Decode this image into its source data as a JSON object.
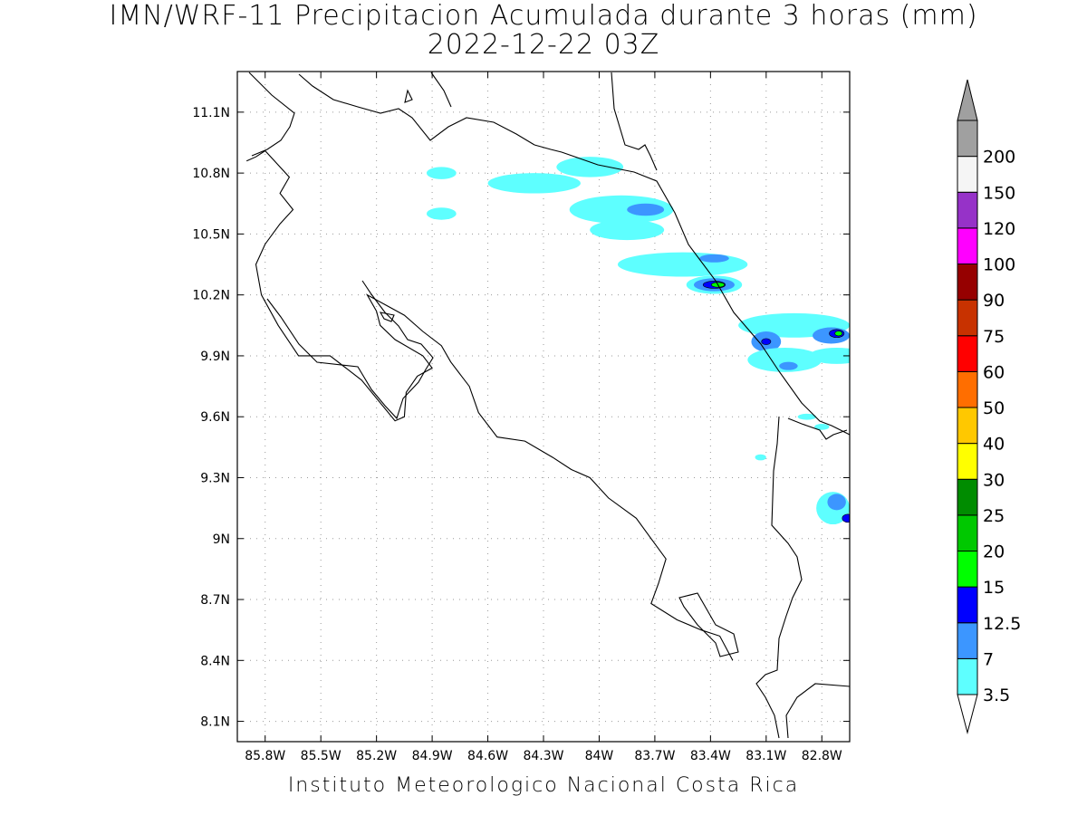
{
  "title": {
    "line1": "IMN/WRF-11 Precipitacion Acumulada durante 3 horas (mm)",
    "line2": "2022-12-22 03Z"
  },
  "footer": "Instituto Meteorologico Nacional Costa Rica",
  "map": {
    "lon_range": [
      -85.95,
      -82.65
    ],
    "lat_range": [
      8.0,
      11.3
    ],
    "lat_ticks": [
      {
        "value": 11.1,
        "label": "11.1N"
      },
      {
        "value": 10.8,
        "label": "10.8N"
      },
      {
        "value": 10.5,
        "label": "10.5N"
      },
      {
        "value": 10.2,
        "label": "10.2N"
      },
      {
        "value": 9.9,
        "label": "9.9N"
      },
      {
        "value": 9.6,
        "label": "9.6N"
      },
      {
        "value": 9.3,
        "label": "9.3N"
      },
      {
        "value": 9.0,
        "label": "9N"
      },
      {
        "value": 8.7,
        "label": "8.7N"
      },
      {
        "value": 8.4,
        "label": "8.4N"
      },
      {
        "value": 8.1,
        "label": "8.1N"
      }
    ],
    "lon_ticks": [
      {
        "value": -85.8,
        "label": "85.8W"
      },
      {
        "value": -85.5,
        "label": "85.5W"
      },
      {
        "value": -85.2,
        "label": "85.2W"
      },
      {
        "value": -84.9,
        "label": "84.9W"
      },
      {
        "value": -84.6,
        "label": "84.6W"
      },
      {
        "value": -84.3,
        "label": "84.3W"
      },
      {
        "value": -84.0,
        "label": "84W"
      },
      {
        "value": -83.7,
        "label": "83.7W"
      },
      {
        "value": -83.4,
        "label": "83.4W"
      },
      {
        "value": -83.1,
        "label": "83.1W"
      },
      {
        "value": -82.8,
        "label": "82.8W"
      }
    ],
    "grid": "dotted"
  },
  "legend": {
    "title": "",
    "levels": [
      {
        "label": "3.5",
        "color": "#5effff"
      },
      {
        "label": "7",
        "color": "#3c96ff"
      },
      {
        "label": "12.5",
        "color": "#0000ff"
      },
      {
        "label": "15",
        "color": "#00ff00"
      },
      {
        "label": "20",
        "color": "#00c800"
      },
      {
        "label": "25",
        "color": "#008c00"
      },
      {
        "label": "30",
        "color": "#ffff00"
      },
      {
        "label": "40",
        "color": "#ffc800"
      },
      {
        "label": "50",
        "color": "#ff6e00"
      },
      {
        "label": "60",
        "color": "#ff0000"
      },
      {
        "label": "75",
        "color": "#c83200"
      },
      {
        "label": "90",
        "color": "#960000"
      },
      {
        "label": "100",
        "color": "#ff00ff"
      },
      {
        "label": "120",
        "color": "#9632c8"
      },
      {
        "label": "150",
        "color": "#f5f5f5"
      },
      {
        "label": "200",
        "color": "#a0a0a0"
      }
    ],
    "under_color": "#ffffff",
    "over_color": "#a0a0a0"
  },
  "precip_cells": [
    {
      "lon": -84.05,
      "lat": 10.83,
      "rx": 0.18,
      "ry": 0.05,
      "level": 0
    },
    {
      "lon": -84.85,
      "lat": 10.8,
      "rx": 0.08,
      "ry": 0.03,
      "level": 0
    },
    {
      "lon": -84.85,
      "lat": 10.6,
      "rx": 0.08,
      "ry": 0.03,
      "level": 0
    },
    {
      "lon": -84.35,
      "lat": 10.75,
      "rx": 0.25,
      "ry": 0.05,
      "level": 0
    },
    {
      "lon": -83.88,
      "lat": 10.62,
      "rx": 0.28,
      "ry": 0.07,
      "level": 0
    },
    {
      "lon": -83.75,
      "lat": 10.62,
      "rx": 0.1,
      "ry": 0.03,
      "level": 1
    },
    {
      "lon": -83.85,
      "lat": 10.52,
      "rx": 0.2,
      "ry": 0.05,
      "level": 0
    },
    {
      "lon": -83.55,
      "lat": 10.35,
      "rx": 0.35,
      "ry": 0.06,
      "level": 0
    },
    {
      "lon": -83.38,
      "lat": 10.38,
      "rx": 0.08,
      "ry": 0.02,
      "level": 1
    },
    {
      "lon": -83.38,
      "lat": 10.25,
      "rx": 0.15,
      "ry": 0.045,
      "level": 0
    },
    {
      "lon": -83.38,
      "lat": 10.25,
      "rx": 0.11,
      "ry": 0.032,
      "level": 1
    },
    {
      "lon": -83.38,
      "lat": 10.25,
      "rx": 0.06,
      "ry": 0.018,
      "level": 2
    },
    {
      "lon": -83.36,
      "lat": 10.25,
      "rx": 0.035,
      "ry": 0.012,
      "level": 3
    },
    {
      "lon": -82.95,
      "lat": 10.05,
      "rx": 0.3,
      "ry": 0.06,
      "level": 0
    },
    {
      "lon": -83.1,
      "lat": 9.97,
      "rx": 0.08,
      "ry": 0.05,
      "level": 1
    },
    {
      "lon": -83.1,
      "lat": 9.97,
      "rx": 0.025,
      "ry": 0.015,
      "level": 2
    },
    {
      "lon": -82.75,
      "lat": 10.0,
      "rx": 0.1,
      "ry": 0.04,
      "level": 1
    },
    {
      "lon": -82.72,
      "lat": 10.01,
      "rx": 0.04,
      "ry": 0.02,
      "level": 2
    },
    {
      "lon": -82.71,
      "lat": 10.01,
      "rx": 0.02,
      "ry": 0.012,
      "level": 3
    },
    {
      "lon": -83.0,
      "lat": 9.88,
      "rx": 0.2,
      "ry": 0.06,
      "level": 0
    },
    {
      "lon": -82.98,
      "lat": 9.85,
      "rx": 0.05,
      "ry": 0.02,
      "level": 1
    },
    {
      "lon": -82.72,
      "lat": 9.9,
      "rx": 0.15,
      "ry": 0.04,
      "level": 0
    },
    {
      "lon": -82.74,
      "lat": 9.15,
      "rx": 0.09,
      "ry": 0.08,
      "level": 0
    },
    {
      "lon": -82.72,
      "lat": 9.18,
      "rx": 0.05,
      "ry": 0.04,
      "level": 1
    },
    {
      "lon": -82.66,
      "lat": 9.1,
      "rx": 0.03,
      "ry": 0.02,
      "level": 2
    },
    {
      "lon": -82.8,
      "lat": 9.55,
      "rx": 0.04,
      "ry": 0.015,
      "level": 0
    },
    {
      "lon": -83.13,
      "lat": 9.4,
      "rx": 0.03,
      "ry": 0.015,
      "level": 0
    },
    {
      "lon": -82.88,
      "lat": 9.6,
      "rx": 0.05,
      "ry": 0.015,
      "level": 0
    }
  ],
  "coastlines": [
    [
      [
        -85.9,
        10.86
      ],
      [
        -85.85,
        10.88
      ],
      [
        -85.8,
        10.91
      ],
      [
        -85.74,
        10.85
      ],
      [
        -85.67,
        10.78
      ],
      [
        -85.72,
        10.7
      ],
      [
        -85.65,
        10.62
      ],
      [
        -85.72,
        10.55
      ],
      [
        -85.8,
        10.45
      ],
      [
        -85.85,
        10.35
      ],
      [
        -85.82,
        10.2
      ],
      [
        -85.73,
        10.05
      ],
      [
        -85.62,
        9.9
      ],
      [
        -85.45,
        9.9
      ],
      [
        -85.28,
        9.78
      ],
      [
        -85.1,
        9.58
      ],
      [
        -85.05,
        9.6
      ],
      [
        -85.04,
        9.72
      ],
      [
        -84.98,
        9.8
      ],
      [
        -84.9,
        9.84
      ],
      [
        -84.95,
        9.9
      ],
      [
        -85.1,
        9.98
      ],
      [
        -85.18,
        10.05
      ],
      [
        -85.2,
        10.12
      ],
      [
        -85.25,
        10.2
      ],
      [
        -85.15,
        10.15
      ],
      [
        -85.05,
        10.1
      ],
      [
        -84.95,
        10.02
      ],
      [
        -84.85,
        9.95
      ],
      [
        -84.8,
        9.87
      ],
      [
        -84.7,
        9.75
      ],
      [
        -84.65,
        9.62
      ],
      [
        -84.55,
        9.5
      ],
      [
        -84.4,
        9.48
      ],
      [
        -84.25,
        9.4
      ],
      [
        -84.15,
        9.34
      ],
      [
        -84.05,
        9.3
      ],
      [
        -83.95,
        9.2
      ],
      [
        -83.8,
        9.1
      ],
      [
        -83.72,
        9.0
      ],
      [
        -83.64,
        8.9
      ],
      [
        -83.68,
        8.78
      ],
      [
        -83.72,
        8.68
      ],
      [
        -83.58,
        8.6
      ],
      [
        -83.45,
        8.55
      ],
      [
        -83.35,
        8.52
      ],
      [
        -83.28,
        8.4
      ]
    ]
  ]
}
